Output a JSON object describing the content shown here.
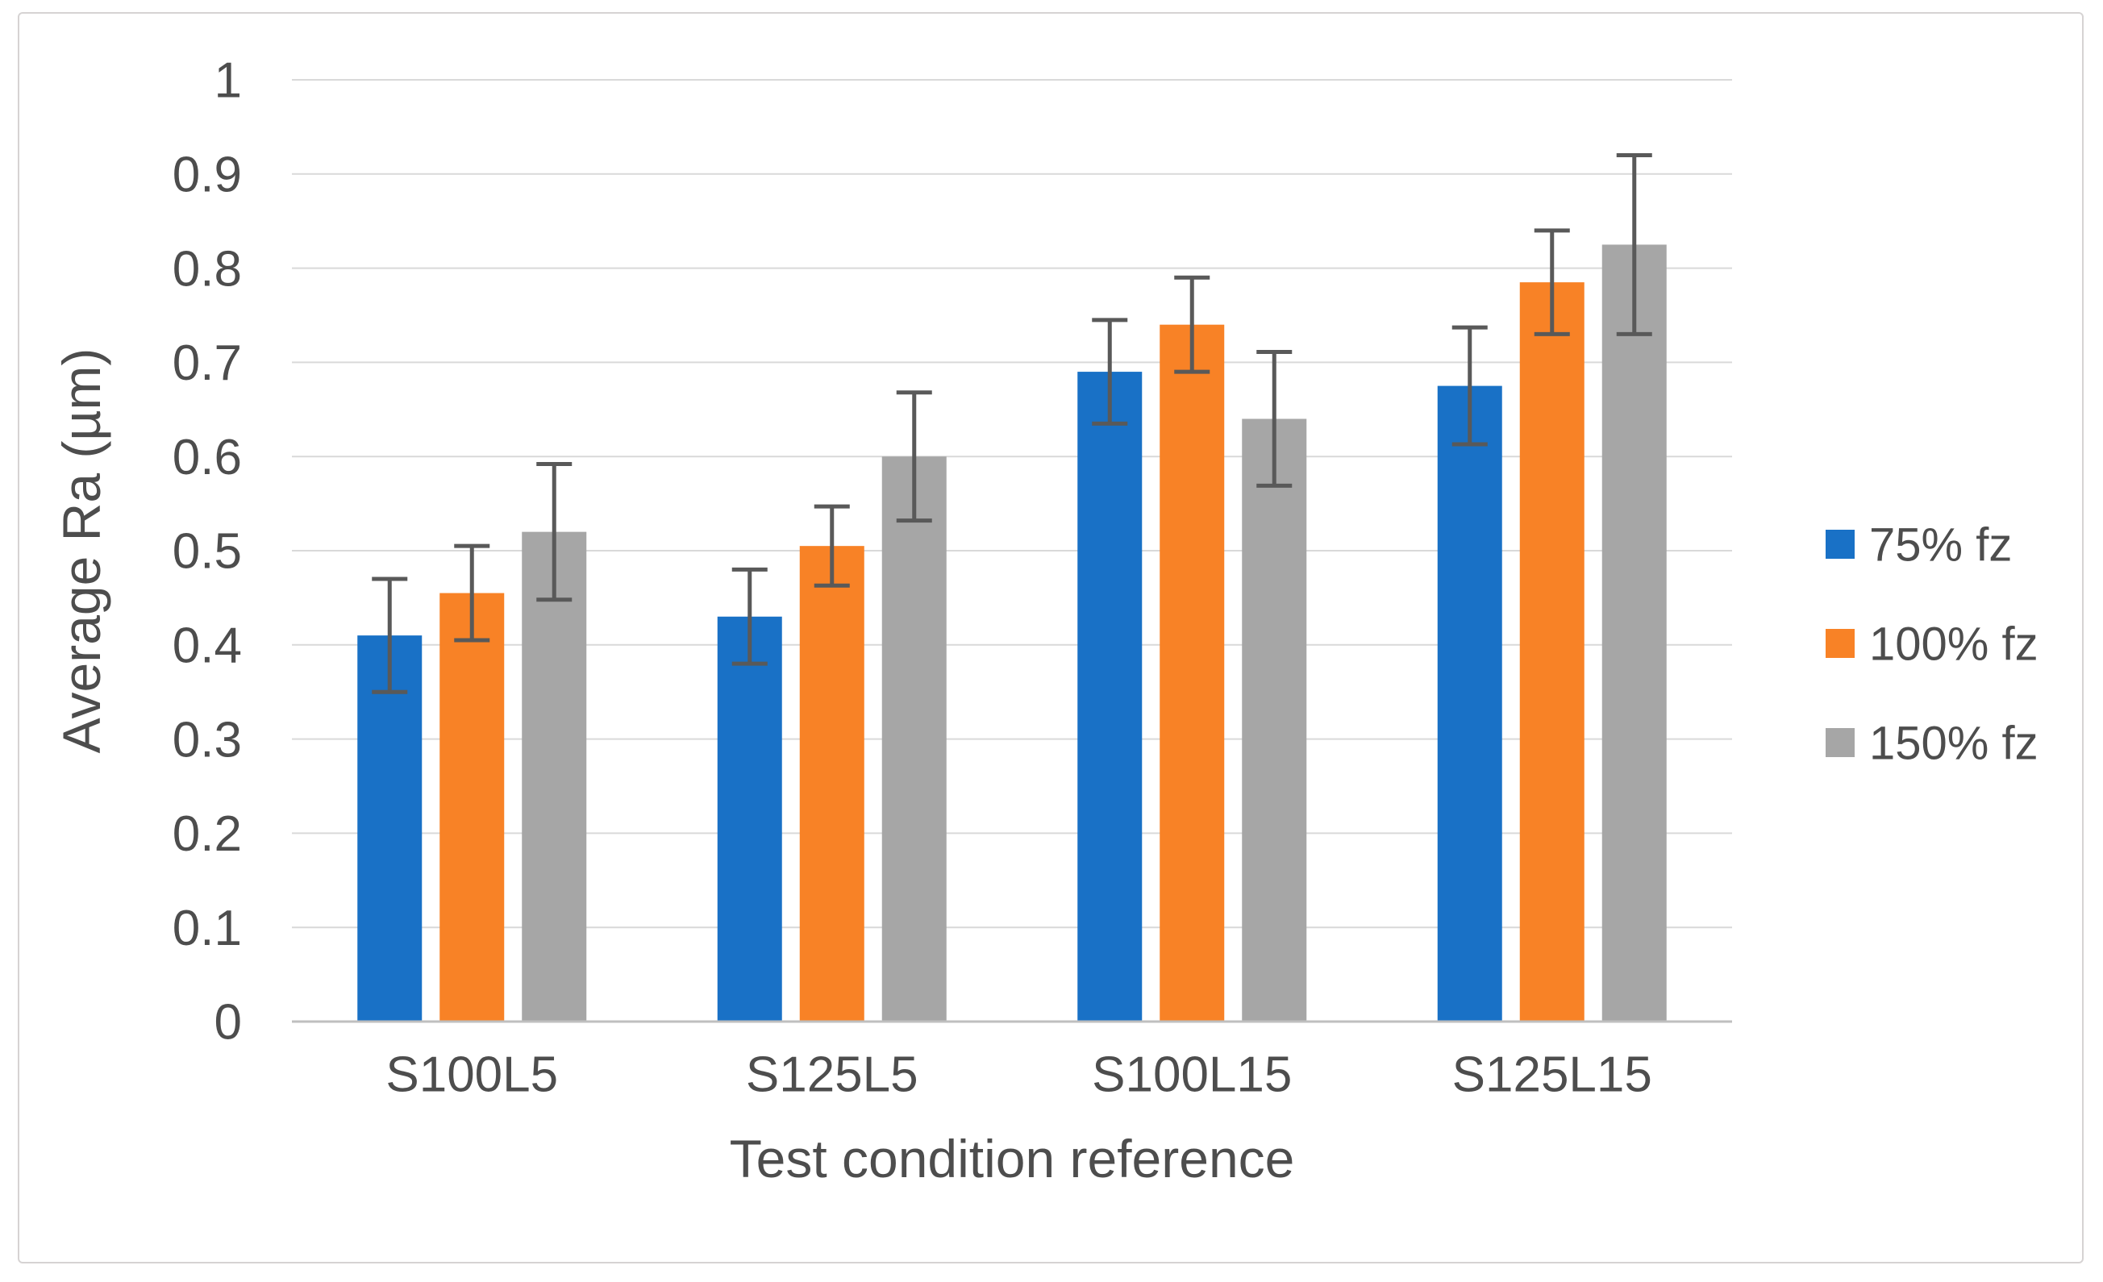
{
  "figure": {
    "background": "#ffffff",
    "border_color": "#d6d3d3"
  },
  "chart_data": {
    "type": "bar",
    "title": "",
    "xlabel": "Test condition reference",
    "ylabel": "Average Ra (µm)",
    "categories": [
      "S100L5",
      "S125L5",
      "S100L15",
      "S125L15"
    ],
    "series": [
      {
        "name": "75% fz",
        "color": "#1971c6",
        "values": [
          0.41,
          0.43,
          0.69,
          0.675
        ],
        "errors": [
          0.06,
          0.05,
          0.055,
          0.062
        ]
      },
      {
        "name": "100% fz",
        "color": "#f88226",
        "values": [
          0.455,
          0.505,
          0.74,
          0.785
        ],
        "errors": [
          0.05,
          0.042,
          0.05,
          0.055
        ]
      },
      {
        "name": "150% fz",
        "color": "#a6a6a6",
        "values": [
          0.52,
          0.6,
          0.64,
          0.825
        ],
        "errors": [
          0.072,
          0.068,
          0.071,
          0.095
        ]
      }
    ],
    "ylim": [
      0,
      1
    ],
    "ytick_step": 0.1,
    "ytick_labels": [
      "0",
      "0.1",
      "0.2",
      "0.3",
      "0.4",
      "0.5",
      "0.6",
      "0.7",
      "0.8",
      "0.9",
      "1"
    ],
    "grid": true,
    "legend_position": "right",
    "gridline_color": "#d9d9d9",
    "axis_line_color": "#bfbfbf",
    "error_bar_color": "#595959",
    "text_color": "#4d4d4d"
  }
}
